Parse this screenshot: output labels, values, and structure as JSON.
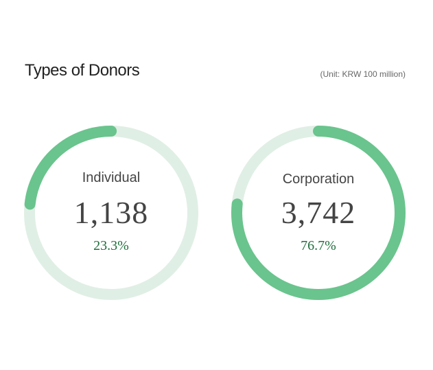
{
  "title": "Types of Donors",
  "unit_note": "(Unit: KRW 100 million)",
  "colors": {
    "accent": "#6ac48d",
    "track": "#e0efe5",
    "percent_text": "#1e6e3a"
  },
  "chart_data": {
    "type": "pie",
    "title": "Types of Donors",
    "categories": [
      "Individual",
      "Corporation"
    ],
    "values": [
      1138,
      3742
    ],
    "value_labels": [
      "1,138",
      "3,742"
    ],
    "percent_labels": [
      "23.3%",
      "76.7%"
    ],
    "percentages": [
      23.3,
      76.7
    ]
  }
}
